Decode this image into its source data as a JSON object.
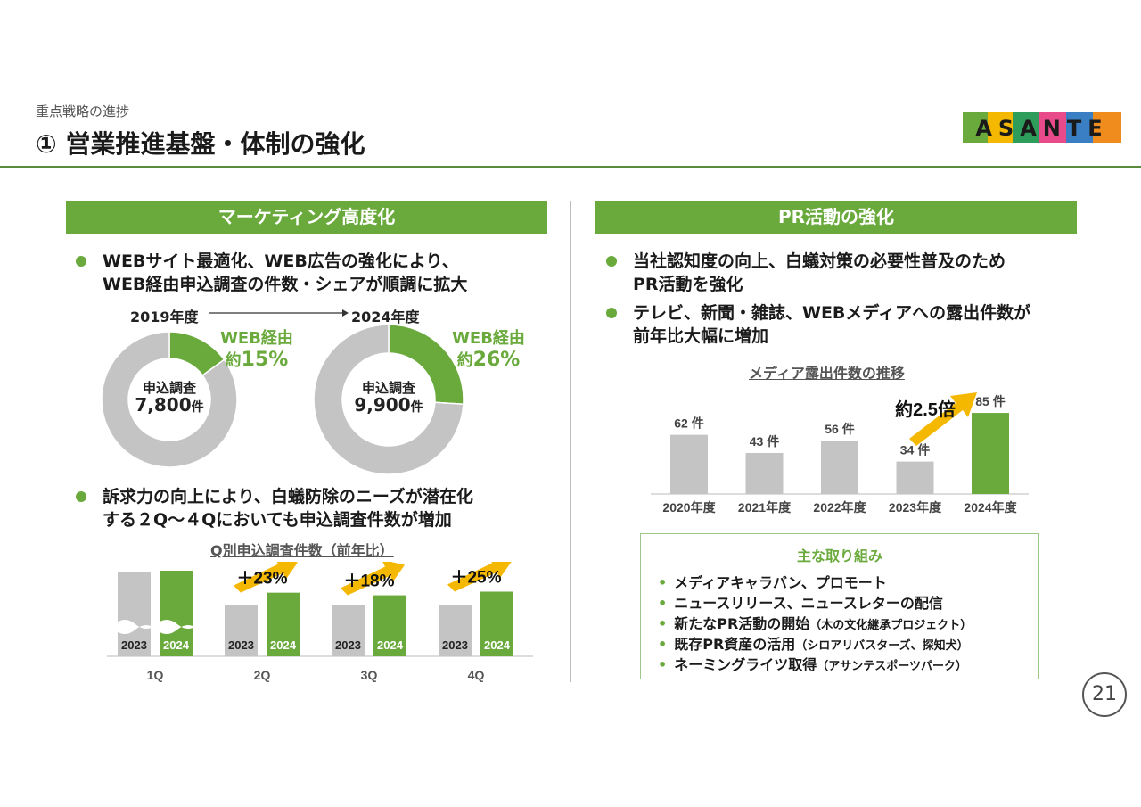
{
  "header": {
    "subtitle": "重点戦略の進捗",
    "title": "① 営業推進基盤・体制の強化",
    "logo_text": "ASANTE",
    "page_number": "21"
  },
  "left": {
    "band": "マーケティング高度化",
    "bullet1": "WEBサイト最適化、WEB広告の強化により、\nWEB経由申込調査の件数・シェアが順調に拡大",
    "bullet2": "訴求力の向上により、白蟻防除のニーズが潜在化\nする２Q～４Qにおいても申込調査件数が増加",
    "donut_2019": {
      "year": "2019年度",
      "center_label": "申込調査",
      "center_value": "7,800",
      "center_unit": "件",
      "web_label": "WEB経由",
      "web_prefix": "約",
      "web_pct_text": "15%"
    },
    "donut_2024": {
      "year": "2024年度",
      "center_label": "申込調査",
      "center_value": "9,900",
      "center_unit": "件",
      "web_label": "WEB経由",
      "web_prefix": "約",
      "web_pct_text": "26%"
    },
    "quarter_title": "Q別申込調査件数（前年比）",
    "growth": [
      "",
      "＋23%",
      "＋18%",
      "＋25%"
    ]
  },
  "right": {
    "band": "PR活動の強化",
    "bullet1": "当社認知度の向上、白蟻対策の必要性普及のため\nPR活動を強化",
    "bullet2": "テレビ、新聞・雑誌、WEBメディアへの露出件数が\n前年比大幅に増加",
    "media_title": "メディア露出件数の推移",
    "multiplier": "約2.5倍",
    "initiatives_title": "主な取り組み",
    "initiatives": [
      {
        "main": "メディアキャラバン、プロモート",
        "note": ""
      },
      {
        "main": "ニュースリリース、ニュースレターの配信",
        "note": ""
      },
      {
        "main": "新たなPR活動の開始",
        "note": "（木の文化継承プロジェクト）"
      },
      {
        "main": "既存PR資産の活用",
        "note": "（シロアリバスターズ、探知犬）"
      },
      {
        "main": "ネーミングライツ取得",
        "note": "（アサンテスポーツパーク）"
      }
    ]
  },
  "colors": {
    "green": "#6aaa3c",
    "gray": "#c4c4c4",
    "arrow": "#f5b800",
    "rule": "#5a8a3c"
  },
  "chart_data": [
    {
      "type": "pie",
      "title": "2019年度",
      "labels": [
        "WEB経由",
        "その他"
      ],
      "values": [
        15,
        85
      ]
    },
    {
      "type": "pie",
      "title": "2024年度",
      "labels": [
        "WEB経由",
        "その他"
      ],
      "values": [
        26,
        74
      ]
    },
    {
      "type": "bar",
      "title": "Q別申込調査件数（前年比）",
      "categories": [
        "1Q",
        "2Q",
        "3Q",
        "4Q"
      ],
      "series": [
        {
          "name": "2023",
          "values": [
            null,
            100,
            100,
            100
          ]
        },
        {
          "name": "2024",
          "values": [
            null,
            123,
            118,
            125
          ]
        }
      ],
      "axis_break": "1Q"
    },
    {
      "type": "bar",
      "title": "メディア露出件数の推移",
      "categories": [
        "2020年度",
        "2021年度",
        "2022年度",
        "2023年度",
        "2024年度"
      ],
      "values": [
        62,
        43,
        56,
        34,
        85
      ],
      "value_labels": [
        "62 件",
        "43 件",
        "56 件",
        "34 件",
        "85 件"
      ]
    }
  ]
}
